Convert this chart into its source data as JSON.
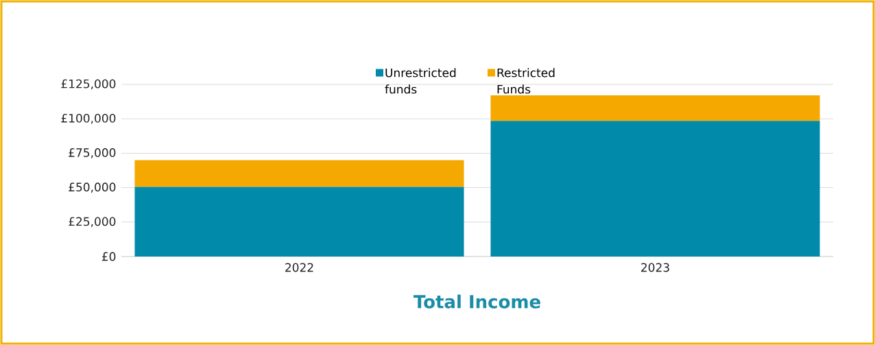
{
  "chart_data": {
    "type": "bar",
    "title": "Total Income",
    "categories": [
      "2022",
      "2023"
    ],
    "series": [
      {
        "name": "Unrestricted funds",
        "color": "#028aaa",
        "values": [
          50500,
          98500
        ]
      },
      {
        "name": "Restricted Funds",
        "color": "#f5a800",
        "values": [
          19500,
          18500
        ]
      }
    ],
    "stacked": true,
    "ylim": [
      0,
      125000
    ],
    "yticks": [
      {
        "value": 0,
        "label": "£0"
      },
      {
        "value": 25000,
        "label": "£25,000"
      },
      {
        "value": 50000,
        "label": "£50,000"
      },
      {
        "value": 75000,
        "label": "£75,000"
      },
      {
        "value": 100000,
        "label": "£100,000"
      },
      {
        "value": 125000,
        "label": "£125,000"
      }
    ],
    "grid": "y",
    "legend": "top"
  }
}
